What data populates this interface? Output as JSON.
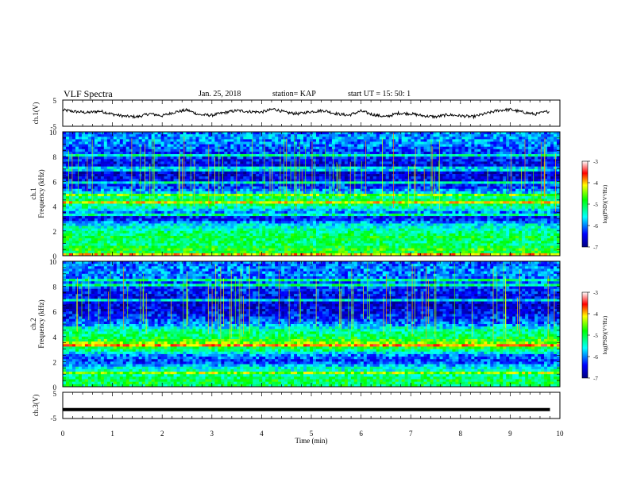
{
  "header": {
    "title": "VLF Spectra",
    "date": "Jan. 25, 2018",
    "station": "station= KAP",
    "start": "start  UT =  15: 50: 1"
  },
  "chart_data": [
    {
      "type": "line",
      "panel": "ch1-waveform",
      "ylabel": "ch.1(V)",
      "xlim": [
        0,
        10
      ],
      "ylim": [
        -5,
        5
      ],
      "yticks": [
        "5",
        "-5"
      ],
      "x": [
        0,
        0.25,
        0.5,
        0.75,
        1,
        1.25,
        1.5,
        1.75,
        2,
        2.25,
        2.5,
        2.75,
        3,
        3.25,
        3.5,
        3.75,
        4,
        4.25,
        4.5,
        4.75,
        5,
        5.25,
        5.5,
        5.75,
        6,
        6.25,
        6.5,
        6.75,
        7,
        7.25,
        7.5,
        7.75,
        8,
        8.25,
        8.5,
        8.75,
        9,
        9.25,
        9.5,
        9.8
      ],
      "values": [
        1.2,
        0.6,
        0.2,
        0.8,
        -0.4,
        -1.2,
        -1.4,
        -0.2,
        -1.0,
        0.4,
        1.2,
        -0.6,
        -0.8,
        0.2,
        1.0,
        0.6,
        0.4,
        1.6,
        0.2,
        -0.2,
        0.6,
        1.0,
        -0.2,
        -0.8,
        0.8,
        -0.6,
        -1.4,
        0.0,
        -0.2,
        -1.0,
        -1.4,
        -0.6,
        -1.0,
        -1.4,
        -0.2,
        1.0,
        1.4,
        0.4,
        -0.4,
        0.8
      ]
    },
    {
      "type": "heatmap",
      "panel": "ch1-spectrogram",
      "ylabel": "ch.1 Frequency (kHz)",
      "xlim": [
        0,
        10
      ],
      "ylim": [
        0,
        10
      ],
      "yticks": [
        "0",
        "2",
        "4",
        "6",
        "8",
        "10"
      ],
      "colorbar": {
        "label": "log(PSD)(V²/Hz)",
        "range": [
          -7,
          -3
        ],
        "ticks": [
          "-3",
          "-4",
          "-5",
          "-6",
          "-7"
        ]
      },
      "frequency_profile_khz": [
        0,
        0.5,
        1,
        1.5,
        2,
        2.5,
        3,
        3.5,
        4,
        4.5,
        5,
        5.5,
        6,
        6.5,
        7,
        7.5,
        8,
        8.5,
        9,
        9.5,
        10
      ],
      "log_psd": [
        -5.0,
        -4.8,
        -5.2,
        -5.0,
        -5.3,
        -5.6,
        -6.5,
        -6.0,
        -5.2,
        -5.0,
        -5.6,
        -6.2,
        -6.4,
        -6.6,
        -6.6,
        -6.5,
        -6.3,
        -6.2,
        -6.0,
        -5.9,
        -6.0
      ]
    },
    {
      "type": "heatmap",
      "panel": "ch2-spectrogram",
      "ylabel": "ch.2 Frequency (kHz)",
      "xlim": [
        0,
        10
      ],
      "ylim": [
        0,
        10
      ],
      "yticks": [
        "0",
        "2",
        "4",
        "6",
        "8",
        "10"
      ],
      "colorbar": {
        "label": "log(PSD)(V²/Hz)",
        "range": [
          -7,
          -3
        ],
        "ticks": [
          "-3",
          "-4",
          "-5",
          "-6",
          "-7"
        ]
      },
      "frequency_profile_khz": [
        0,
        0.5,
        1,
        1.5,
        2,
        2.5,
        3,
        3.5,
        4,
        4.5,
        5,
        5.5,
        6,
        6.5,
        7,
        7.5,
        8,
        8.5,
        9,
        9.5,
        10
      ],
      "log_psd": [
        -5.1,
        -5.0,
        -5.3,
        -5.5,
        -6.3,
        -6.0,
        -5.0,
        -4.5,
        -5.1,
        -5.3,
        -6.0,
        -6.3,
        -6.5,
        -6.6,
        -6.5,
        -6.4,
        -6.2,
        -6.1,
        -6.0,
        -6.0,
        -6.1
      ]
    },
    {
      "type": "line",
      "panel": "ch3-waveform",
      "ylabel": "ch.3(V)",
      "xlabel": "Time (min)",
      "xlim": [
        0,
        10
      ],
      "ylim": [
        -5,
        5
      ],
      "yticks": [
        "5",
        "-5"
      ],
      "xticks": [
        "0",
        "1",
        "2",
        "3",
        "4",
        "5",
        "6",
        "7",
        "8",
        "9",
        "10"
      ],
      "x": [
        0,
        9.8
      ],
      "values": [
        -1.6,
        -1.6
      ]
    }
  ]
}
